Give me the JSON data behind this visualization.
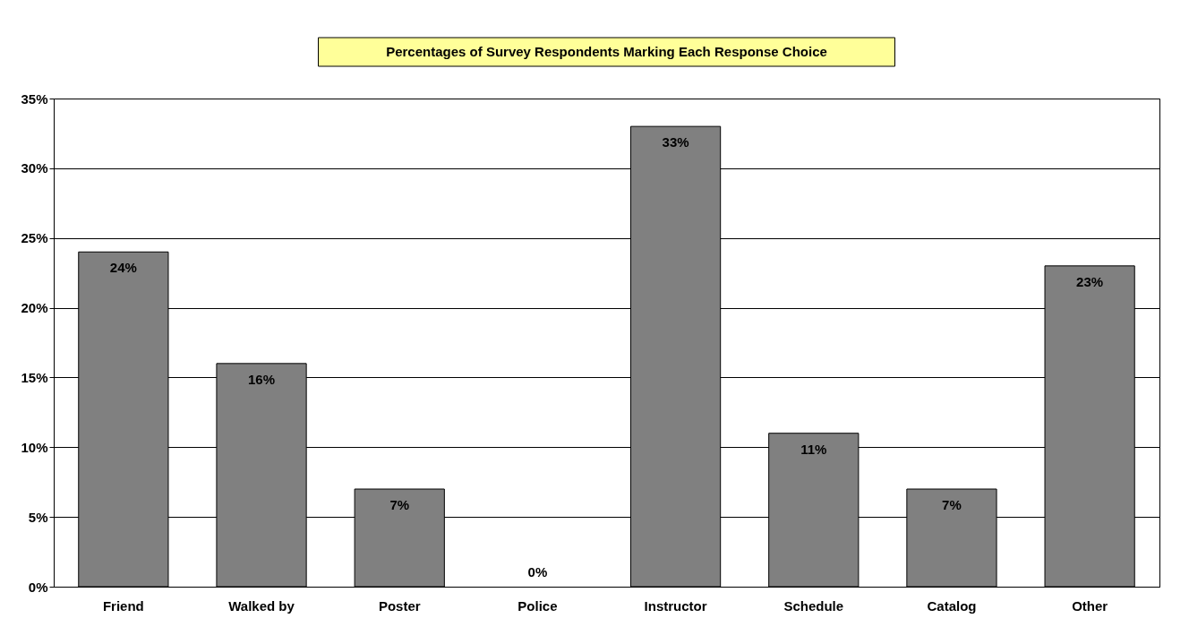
{
  "chart_data": {
    "type": "bar",
    "title": "Percentages of Survey Respondents Marking Each Response Choice",
    "categories": [
      "Friend",
      "Walked by",
      "Poster",
      "Police",
      "Instructor",
      "Schedule",
      "Catalog",
      "Other"
    ],
    "values": [
      24,
      16,
      7,
      0,
      33,
      11,
      7,
      23
    ],
    "value_labels": [
      "24%",
      "16%",
      "7%",
      "0%",
      "33%",
      "11%",
      "7%",
      "23%"
    ],
    "color": "#808080",
    "ylim": [
      0,
      35
    ],
    "yticks": [
      {
        "value": 0,
        "label": "0%"
      },
      {
        "value": 5,
        "label": "5%"
      },
      {
        "value": 10,
        "label": "10%"
      },
      {
        "value": 15,
        "label": "15%"
      },
      {
        "value": 20,
        "label": "20%"
      },
      {
        "value": 25,
        "label": "25%"
      },
      {
        "value": 30,
        "label": "30%"
      },
      {
        "value": 35,
        "label": "35%"
      }
    ],
    "grid": "y"
  }
}
